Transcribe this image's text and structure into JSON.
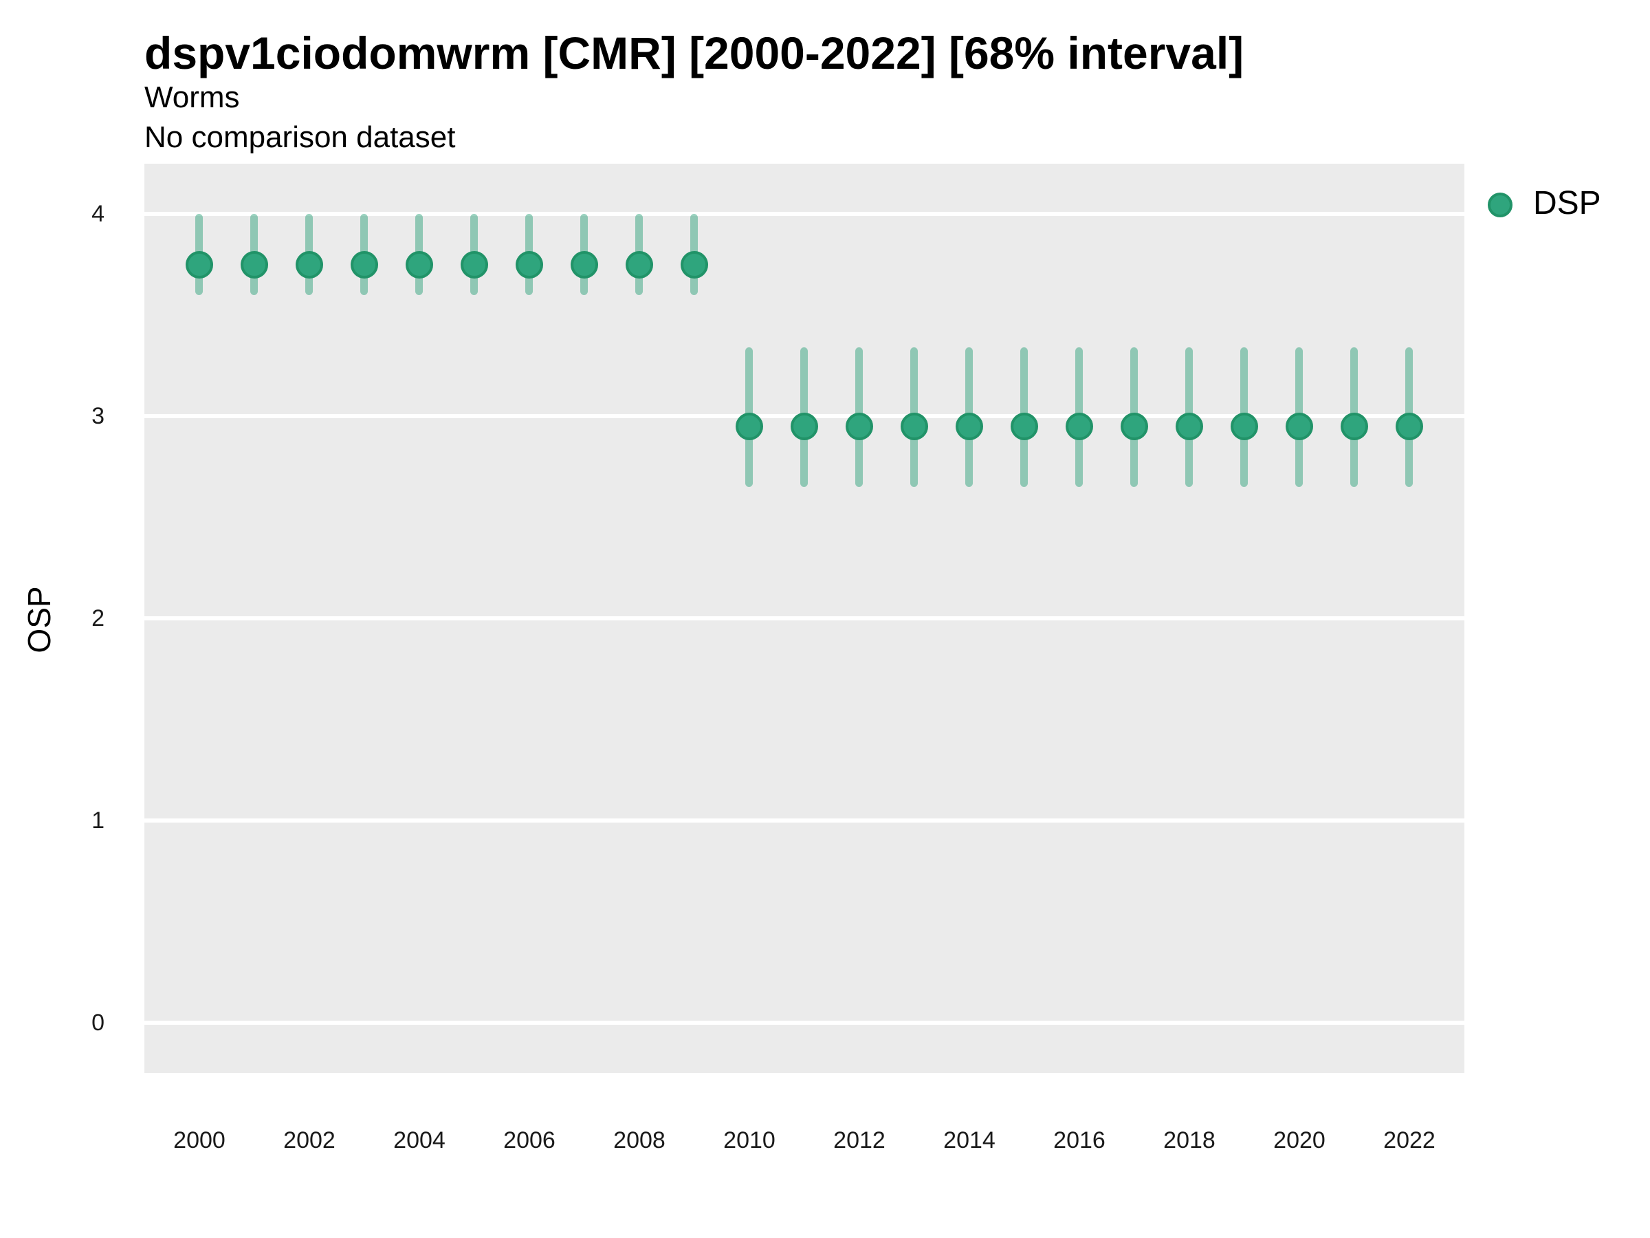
{
  "header": {
    "title": "dspv1ciodomwrm [CMR] [2000-2022] [68% interval]",
    "subtitle": "Worms",
    "comparison_note": "No comparison dataset"
  },
  "legend": {
    "position": "right",
    "items": [
      {
        "label": "DSP",
        "marker": "circle-icon"
      }
    ]
  },
  "colors": {
    "point_fill": "#2fa57d",
    "point_stroke": "#219368",
    "error_bar": "rgba(31,155,112,0.45)",
    "panel_background": "#ebebeb",
    "gridline": "#ffffff",
    "tick_text": "#1a1a1a",
    "title_text": "#000000"
  },
  "chart_data": {
    "type": "scatter",
    "title": "dspv1ciodomwrm [CMR] [2000-2022] [68% interval]",
    "subtitle": "Worms",
    "note": "No comparison dataset",
    "interval_level": "68%",
    "xlabel": "",
    "ylabel": "OSP",
    "xlim": [
      1999,
      2023
    ],
    "ylim": [
      -0.25,
      4.25
    ],
    "x_ticks": [
      2000,
      2002,
      2004,
      2006,
      2008,
      2010,
      2012,
      2014,
      2016,
      2018,
      2020,
      2022
    ],
    "y_ticks": [
      0,
      1,
      2,
      3,
      4
    ],
    "grid": "major-horizontal-only",
    "legend_position": "right",
    "x": [
      2000,
      2001,
      2002,
      2003,
      2004,
      2005,
      2006,
      2007,
      2008,
      2009,
      2010,
      2011,
      2012,
      2013,
      2014,
      2015,
      2016,
      2017,
      2018,
      2019,
      2020,
      2021,
      2022
    ],
    "series": [
      {
        "name": "DSP",
        "mid": [
          3.75,
          3.75,
          3.75,
          3.75,
          3.75,
          3.75,
          3.75,
          3.75,
          3.75,
          3.75,
          2.95,
          2.95,
          2.95,
          2.95,
          2.95,
          2.95,
          2.95,
          2.95,
          2.95,
          2.95,
          2.95,
          2.95,
          2.95
        ],
        "lo": [
          3.6,
          3.6,
          3.6,
          3.6,
          3.6,
          3.6,
          3.6,
          3.6,
          3.6,
          3.6,
          2.65,
          2.65,
          2.65,
          2.65,
          2.65,
          2.65,
          2.65,
          2.65,
          2.65,
          2.65,
          2.65,
          2.65,
          2.65
        ],
        "hi": [
          4.0,
          4.0,
          4.0,
          4.0,
          4.0,
          4.0,
          4.0,
          4.0,
          4.0,
          4.0,
          3.34,
          3.34,
          3.34,
          3.34,
          3.34,
          3.34,
          3.34,
          3.34,
          3.34,
          3.34,
          3.34,
          3.34,
          3.34
        ]
      }
    ]
  }
}
